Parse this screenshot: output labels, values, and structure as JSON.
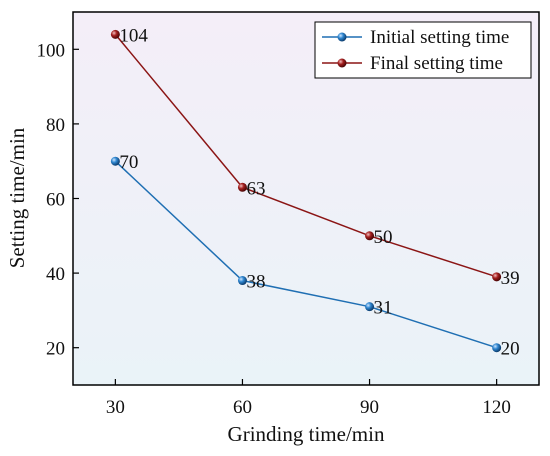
{
  "chart_data": {
    "type": "line",
    "title": "",
    "xlabel": "Grinding time/min",
    "ylabel": "Setting time/min",
    "x": [
      30,
      60,
      90,
      120
    ],
    "xlim": [
      20,
      130
    ],
    "ylim": [
      10,
      110
    ],
    "xticks": [
      "30",
      "60",
      "90",
      "120"
    ],
    "yticks": [
      "20",
      "40",
      "60",
      "80",
      "100"
    ],
    "legend_position": "top-right",
    "grid": false,
    "background": "light gradient (lavender top to pale blue bottom)",
    "series": [
      {
        "name": "Initial setting time",
        "values": [
          70,
          38,
          31,
          20
        ],
        "labels": [
          "70",
          "38",
          "31",
          "20"
        ],
        "color": "#1f6fb3",
        "marker": "sphere"
      },
      {
        "name": "Final setting time",
        "values": [
          104,
          63,
          50,
          39
        ],
        "labels": [
          "104",
          "63",
          "50",
          "39"
        ],
        "color": "#8b1515",
        "marker": "sphere"
      }
    ]
  }
}
